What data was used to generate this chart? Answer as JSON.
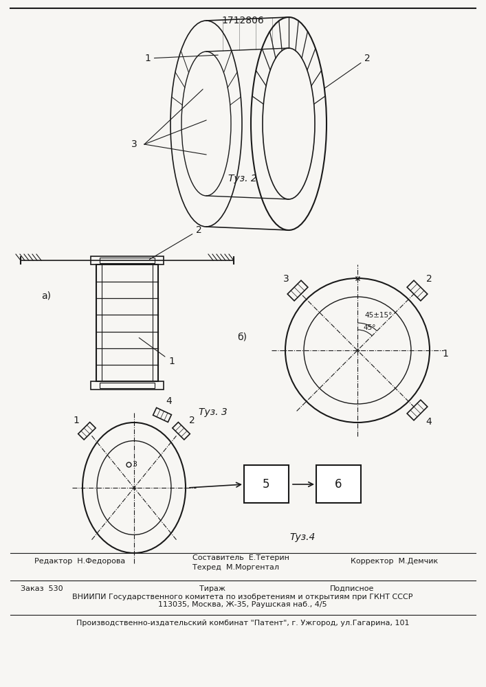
{
  "patent_number": "1712806",
  "fig2_label": "Τуз. 2",
  "fig3_label": "Τуз. 3",
  "fig4_label": "Τуз.4",
  "fig3a_label": "a)",
  "fig3b_label": "б)",
  "bg_color": "#f7f6f3",
  "line_color": "#1a1a1a",
  "editor_line1": "Составитель  Е.Тетерин",
  "editor_line2": "Техред  М.Моргентал",
  "editor_left": "Редактор  Н.Федорова",
  "editor_right": "Корректор  М.Демчик",
  "order_text": "Заказ  530",
  "tirazh_text": "Тираж",
  "podpisnoe_text": "Подписное",
  "vniip_line1": "ВНИИПИ Государственного комитета по изобретениям и открытиям при ГКНТ СССР",
  "vniip_line2": "113035, Москва, Ж-35, Раушская наб., 4/5",
  "patent_plant": "Производственно-издательский комбинат \"Патент\", г. Ужгород, ул.Гагарина, 101"
}
